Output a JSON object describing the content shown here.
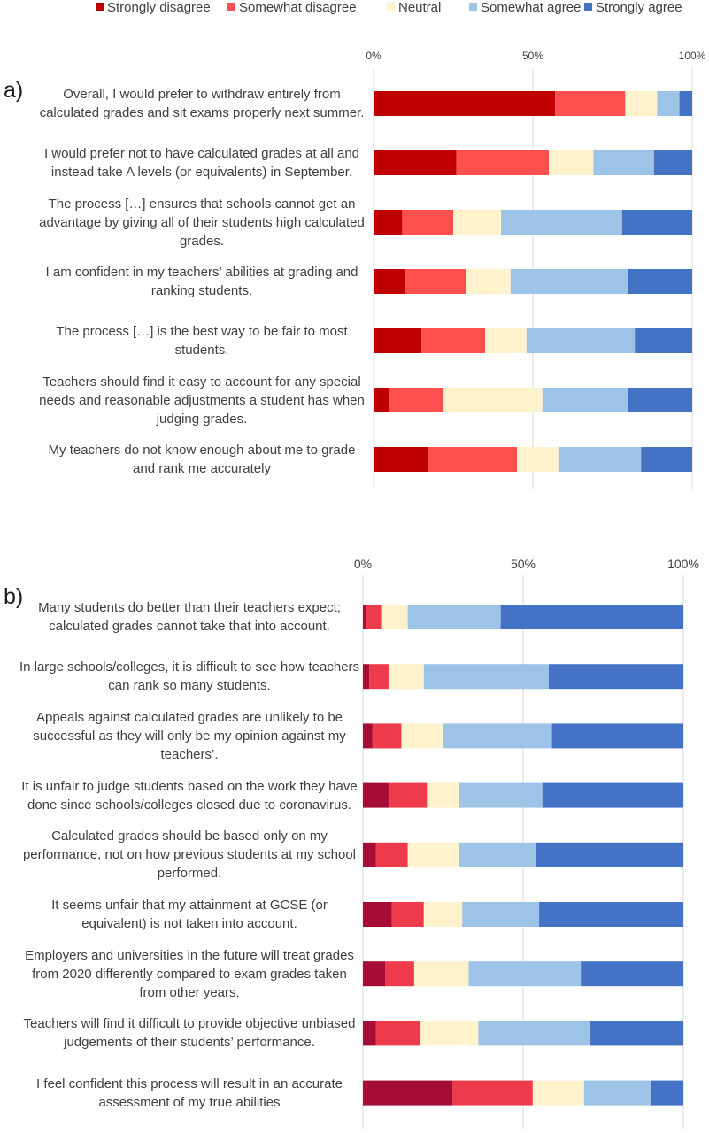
{
  "legend": {
    "items": [
      {
        "label": "Strongly disagree",
        "color": "#C00000"
      },
      {
        "label": "Somewhat disagree",
        "color": "#FF5050"
      },
      {
        "label": "Neutral",
        "color": "#FFF2CC"
      },
      {
        "label": "Somewhat agree",
        "color": "#9DC3E6"
      },
      {
        "label": "Strongly agree",
        "color": "#4472C4"
      }
    ]
  },
  "chart_data": [
    {
      "type": "bar",
      "stacked": "100%",
      "orientation": "horizontal",
      "panel_label": "a)",
      "tick_labels": [
        "0%",
        "50%",
        "100%"
      ],
      "xlim": [
        0,
        100
      ],
      "grid": true,
      "legend_position": "top",
      "categories": [
        "Overall, I would prefer to withdraw entirely from calculated grades and sit exams properly next summer.",
        "I would prefer not to have calculated grades at all and instead take A levels (or equivalents) in September.",
        "The process […] ensures that schools cannot get an advantage by giving all of their students high calculated grades.",
        "I am confident in my teachers’ abilities at grading and ranking students.",
        "The process […] is the best way to be fair to most students.",
        "Teachers should find it easy to account for any special needs and reasonable adjustments a student has when judging grades.",
        "My teachers do not know enough about me to grade and rank me accurately"
      ],
      "series": [
        {
          "name": "Strongly disagree",
          "color": "#C00000",
          "values": [
            57,
            26,
            9,
            10,
            15,
            5,
            17
          ]
        },
        {
          "name": "Somewhat disagree",
          "color": "#FF5050",
          "values": [
            22,
            29,
            16,
            19,
            20,
            17,
            28
          ]
        },
        {
          "name": "Neutral",
          "color": "#FFF2CC",
          "values": [
            10,
            14,
            15,
            14,
            13,
            31,
            13
          ]
        },
        {
          "name": "Somewhat agree",
          "color": "#9DC3E6",
          "values": [
            7,
            19,
            38,
            37,
            34,
            27,
            26
          ]
        },
        {
          "name": "Strongly agree",
          "color": "#4472C4",
          "values": [
            4,
            12,
            22,
            20,
            18,
            20,
            16
          ]
        }
      ]
    },
    {
      "type": "bar",
      "stacked": "100%",
      "orientation": "horizontal",
      "panel_label": "b)",
      "tick_labels": [
        "0%",
        "50%",
        "100%"
      ],
      "xlim": [
        0,
        100
      ],
      "grid": true,
      "legend_position": "top",
      "categories": [
        "Many students do better than their teachers expect; calculated grades cannot take that into account.",
        "In large schools/colleges, it is difficult to see how teachers can rank so many students.",
        "Appeals against calculated grades are unlikely to be successful  as they will only be my opinion against my teachers’.",
        "It is unfair to judge students based on the work they have done since schools/colleges closed due to coronavirus.",
        "Calculated grades should be based only on my performance, not on how previous students at my school performed.",
        "It seems unfair that my attainment at GCSE (or equivalent) is not taken into account.",
        "Employers and universities in the future will treat grades from 2020 differently compared to exam grades taken from other years.",
        "Teachers will find it difficult to provide objective unbiased judgements of their students’ performance.",
        "I feel confident this process will result in an accurate assessment of my true abilities"
      ],
      "series": [
        {
          "name": "Strongly disagree",
          "color": "#A50D37",
          "values": [
            1,
            2,
            3,
            8,
            4,
            9,
            7,
            4,
            28
          ]
        },
        {
          "name": "Somewhat disagree",
          "color": "#EE3B4B",
          "values": [
            5,
            6,
            9,
            12,
            10,
            10,
            9,
            14,
            25
          ]
        },
        {
          "name": "Neutral",
          "color": "#FFF2CC",
          "values": [
            8,
            11,
            13,
            10,
            16,
            12,
            17,
            18,
            16
          ]
        },
        {
          "name": "Somewhat agree",
          "color": "#9DC3E6",
          "values": [
            29,
            39,
            34,
            26,
            24,
            24,
            35,
            35,
            21
          ]
        },
        {
          "name": "Strongly agree",
          "color": "#4472C4",
          "values": [
            57,
            42,
            41,
            44,
            46,
            45,
            32,
            29,
            10
          ]
        }
      ]
    }
  ]
}
